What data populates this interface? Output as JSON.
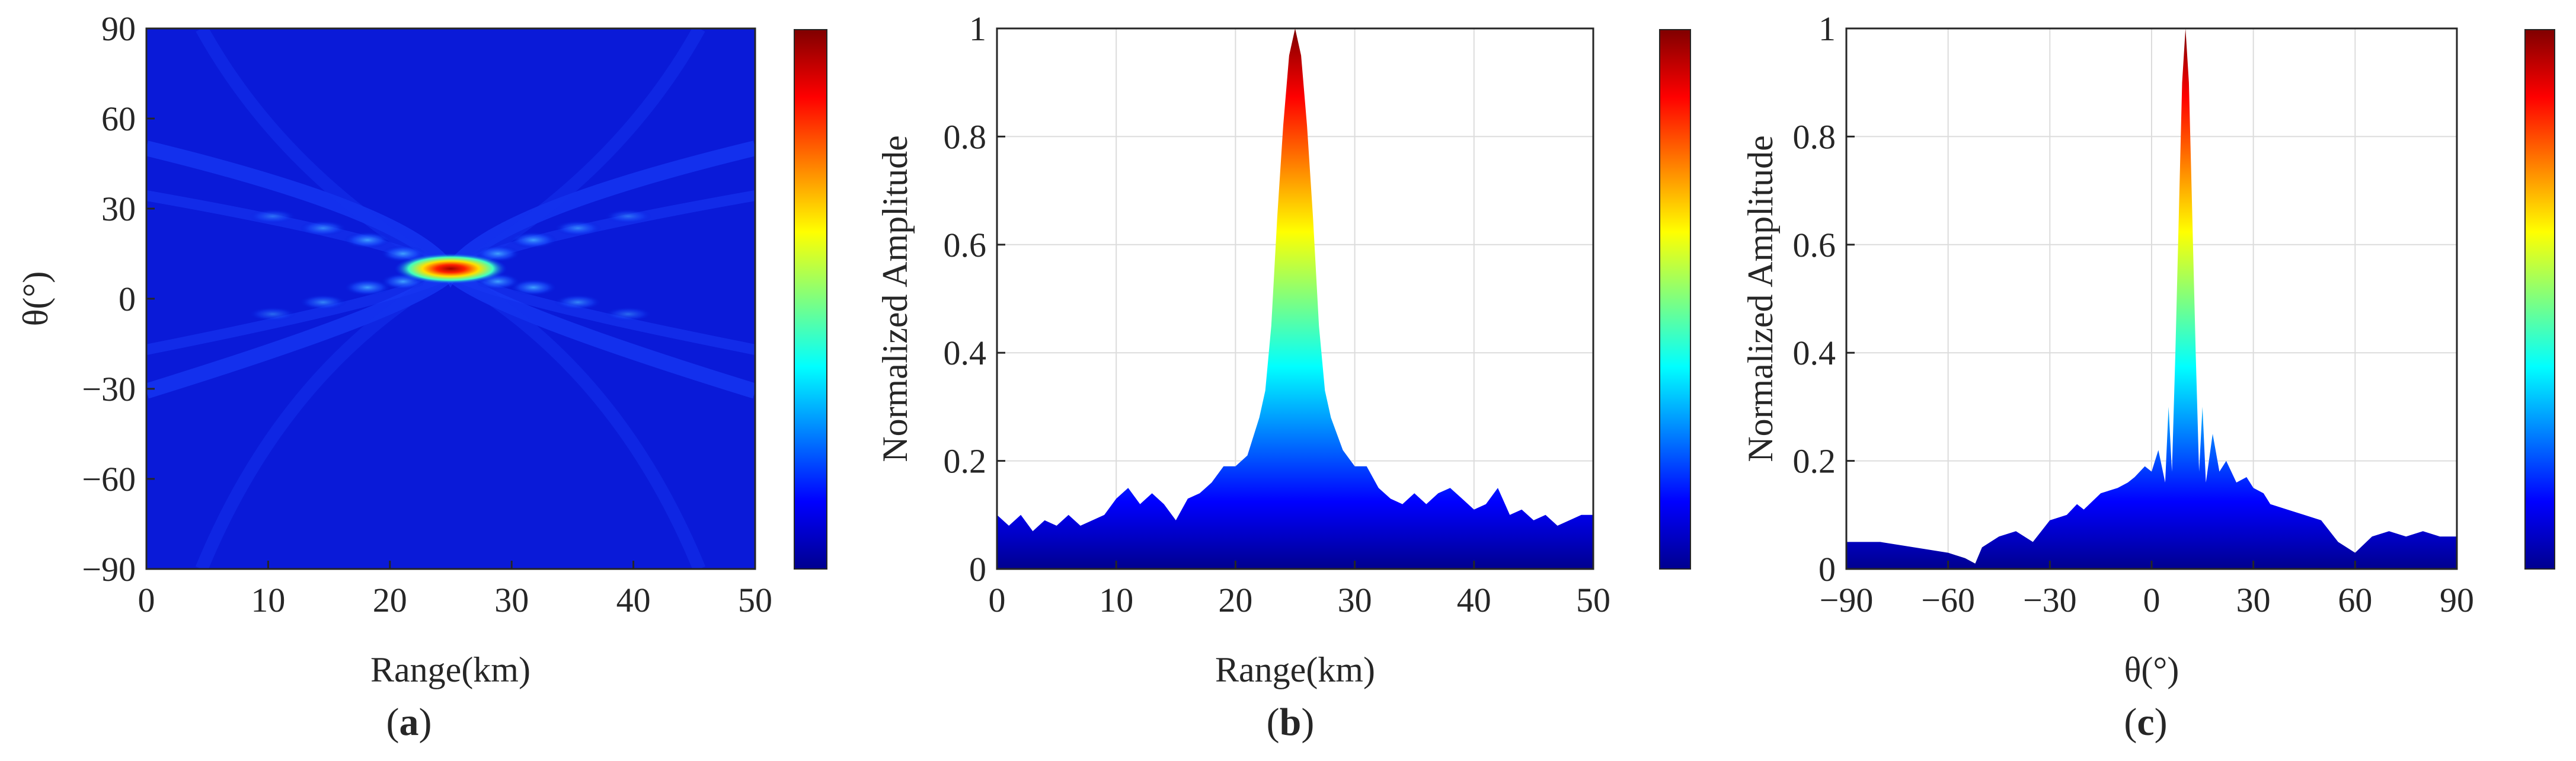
{
  "chart_data": [
    {
      "panel": "a",
      "type": "heatmap",
      "title": "",
      "xlabel": "Range(km)",
      "ylabel": "θ(°)",
      "xlim": [
        0,
        50
      ],
      "ylim": [
        -90,
        90
      ],
      "xticks": [
        "0",
        "10",
        "20",
        "30",
        "40",
        "50"
      ],
      "yticks": [
        "90",
        "60",
        "30",
        "0",
        "−30",
        "−60",
        "−90"
      ],
      "peak": {
        "range_km": 25,
        "theta_deg": 10,
        "value": 1.0
      },
      "colorbar": {
        "colormap": "jet",
        "range": [
          0,
          1
        ]
      },
      "caption": {
        "open": "(",
        "letter": "a",
        "close": ")"
      }
    },
    {
      "panel": "b",
      "type": "area",
      "title": "",
      "xlabel": "Range(km)",
      "ylabel": "Normalized Amplitude",
      "xlim": [
        0,
        50
      ],
      "ylim": [
        0,
        1
      ],
      "grid": true,
      "xticks": [
        "0",
        "10",
        "20",
        "30",
        "40",
        "50"
      ],
      "yticks": [
        "0",
        "0.2",
        "0.4",
        "0.6",
        "0.8",
        "1"
      ],
      "x": [
        0,
        1,
        2,
        3,
        4,
        5,
        6,
        7,
        8,
        9,
        10,
        11,
        12,
        13,
        14,
        15,
        16,
        17,
        18,
        19,
        20,
        21,
        22,
        22.5,
        23,
        23.5,
        24,
        24.5,
        25,
        25.5,
        26,
        26.5,
        27,
        27.5,
        28,
        29,
        30,
        31,
        32,
        33,
        34,
        35,
        36,
        37,
        38,
        39,
        40,
        41,
        42,
        43,
        44,
        45,
        46,
        47,
        48,
        49,
        50
      ],
      "values": [
        0.1,
        0.08,
        0.1,
        0.07,
        0.09,
        0.08,
        0.1,
        0.08,
        0.09,
        0.1,
        0.13,
        0.15,
        0.12,
        0.14,
        0.12,
        0.09,
        0.13,
        0.14,
        0.16,
        0.19,
        0.19,
        0.21,
        0.28,
        0.33,
        0.45,
        0.65,
        0.82,
        0.95,
        1.0,
        0.95,
        0.82,
        0.65,
        0.45,
        0.33,
        0.28,
        0.22,
        0.19,
        0.19,
        0.15,
        0.13,
        0.12,
        0.14,
        0.12,
        0.14,
        0.15,
        0.13,
        0.11,
        0.12,
        0.15,
        0.1,
        0.11,
        0.09,
        0.1,
        0.08,
        0.09,
        0.1,
        0.1
      ],
      "colorbar": {
        "colormap": "jet",
        "range": [
          0,
          1
        ]
      },
      "caption": {
        "open": "(",
        "letter": "b",
        "close": ")"
      }
    },
    {
      "panel": "c",
      "type": "area",
      "title": "",
      "xlabel": "θ(°)",
      "ylabel": "Normalized Amplitude",
      "xlim": [
        -90,
        90
      ],
      "ylim": [
        0,
        1
      ],
      "grid": true,
      "xticks": [
        "−90",
        "−60",
        "−30",
        "0",
        "30",
        "60",
        "90"
      ],
      "yticks": [
        "0",
        "0.2",
        "0.4",
        "0.6",
        "0.8",
        "1"
      ],
      "x": [
        -90,
        -80,
        -70,
        -60,
        -55,
        -52,
        -50,
        -45,
        -40,
        -35,
        -30,
        -25,
        -22,
        -20,
        -15,
        -10,
        -7,
        -5,
        -2,
        0,
        2,
        4,
        5,
        6,
        7,
        8,
        9,
        10,
        11,
        12,
        13,
        14,
        15,
        16,
        18,
        20,
        22,
        25,
        28,
        30,
        33,
        35,
        40,
        45,
        50,
        55,
        60,
        65,
        70,
        75,
        80,
        85,
        90
      ],
      "values": [
        0.05,
        0.05,
        0.04,
        0.03,
        0.02,
        0.01,
        0.04,
        0.06,
        0.07,
        0.05,
        0.09,
        0.1,
        0.12,
        0.11,
        0.14,
        0.15,
        0.16,
        0.17,
        0.19,
        0.18,
        0.22,
        0.16,
        0.3,
        0.18,
        0.4,
        0.65,
        0.9,
        1.0,
        0.9,
        0.65,
        0.4,
        0.18,
        0.3,
        0.16,
        0.25,
        0.18,
        0.2,
        0.16,
        0.17,
        0.15,
        0.14,
        0.12,
        0.11,
        0.1,
        0.09,
        0.05,
        0.03,
        0.06,
        0.07,
        0.06,
        0.07,
        0.06,
        0.06
      ],
      "colorbar": {
        "colormap": "jet",
        "range": [
          0,
          1
        ]
      },
      "caption": {
        "open": "(",
        "letter": "c",
        "close": ")"
      }
    }
  ]
}
